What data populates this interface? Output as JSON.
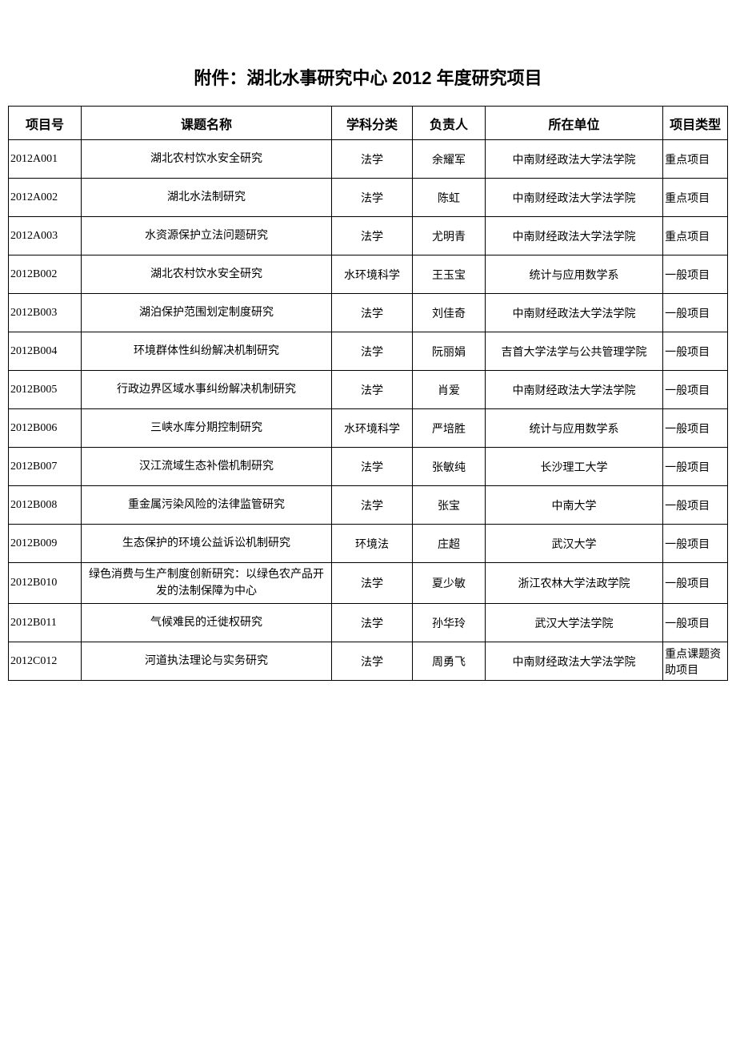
{
  "title": "附件：湖北水事研究中心 2012 年度研究项目",
  "columns": [
    "项目号",
    "课题名称",
    "学科分类",
    "负责人",
    "所在单位",
    "项目类型"
  ],
  "rows": [
    {
      "id": "2012A001",
      "title": "湖北农村饮水安全研究",
      "subject": "法学",
      "person": "余耀军",
      "unit": "中南财经政法大学法学院",
      "type": "重点项目"
    },
    {
      "id": "2012A002",
      "title": "湖北水法制研究",
      "subject": "法学",
      "person": "陈虹",
      "unit": "中南财经政法大学法学院",
      "type": "重点项目"
    },
    {
      "id": "2012A003",
      "title": "水资源保护立法问题研究",
      "subject": "法学",
      "person": "尤明青",
      "unit": "中南财经政法大学法学院",
      "type": "重点项目"
    },
    {
      "id": "2012B002",
      "title": "湖北农村饮水安全研究",
      "subject": "水环境科学",
      "person": "王玉宝",
      "unit": "统计与应用数学系",
      "type": "一般项目"
    },
    {
      "id": "2012B003",
      "title": "湖泊保护范围划定制度研究",
      "subject": "法学",
      "person": "刘佳奇",
      "unit": "中南财经政法大学法学院",
      "type": "一般项目"
    },
    {
      "id": "2012B004",
      "title": "环境群体性纠纷解决机制研究",
      "subject": "法学",
      "person": "阮丽娟",
      "unit": "吉首大学法学与公共管理学院",
      "type": "一般项目"
    },
    {
      "id": "2012B005",
      "title": "行政边界区域水事纠纷解决机制研究",
      "subject": "法学",
      "person": "肖爱",
      "unit": "中南财经政法大学法学院",
      "type": "一般项目"
    },
    {
      "id": "2012B006",
      "title": "三峡水库分期控制研究",
      "subject": "水环境科学",
      "person": "严培胜",
      "unit": "统计与应用数学系",
      "type": "一般项目"
    },
    {
      "id": "2012B007",
      "title": "汉江流域生态补偿机制研究",
      "subject": "法学",
      "person": "张敏纯",
      "unit": "长沙理工大学",
      "type": "一般项目"
    },
    {
      "id": "2012B008",
      "title": "重金属污染风险的法律监管研究",
      "subject": "法学",
      "person": "张宝",
      "unit": "中南大学",
      "type": "一般项目"
    },
    {
      "id": "2012B009",
      "title": "生态保护的环境公益诉讼机制研究",
      "subject": "环境法",
      "person": "庄超",
      "unit": "武汉大学",
      "type": "一般项目"
    },
    {
      "id": "2012B010",
      "title": "绿色消费与生产制度创新研究：以绿色农产品开发的法制保障为中心",
      "subject": "法学",
      "person": "夏少敏",
      "unit": "浙江农林大学法政学院",
      "type": "一般项目"
    },
    {
      "id": "2012B011",
      "title": "气候难民的迁徙权研究",
      "subject": "法学",
      "person": "孙华玲",
      "unit": "武汉大学法学院",
      "type": "一般项目"
    },
    {
      "id": "2012C012",
      "title": "河道执法理论与实务研究",
      "subject": "法学",
      "person": "周勇飞",
      "unit": "中南财经政法大学法学院",
      "type": "重点课题资助项目"
    }
  ]
}
